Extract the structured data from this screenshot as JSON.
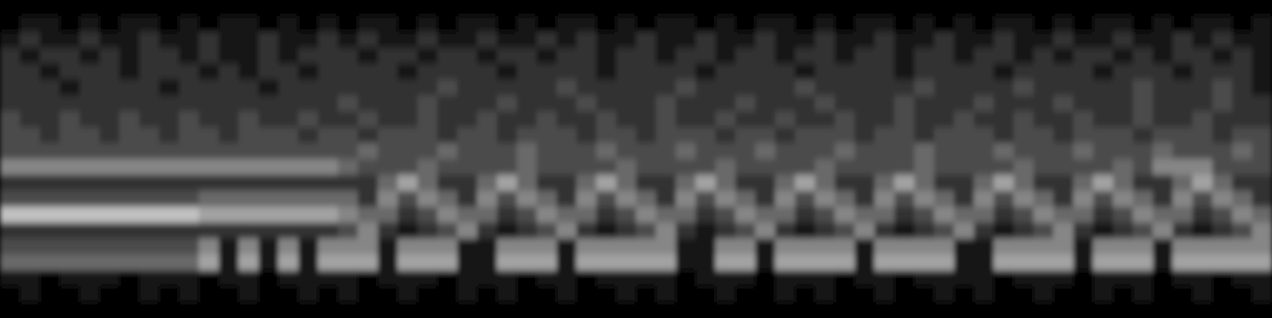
{
  "chart_data": {
    "type": "heatmap",
    "color_range": [
      0,
      9
    ],
    "cells": [
      [
        0,
        0,
        0,
        0,
        0,
        0,
        0,
        0,
        0,
        0,
        0,
        0,
        0,
        0,
        0,
        0,
        0,
        0,
        0,
        0,
        0,
        0,
        0,
        0,
        0,
        0,
        0,
        0,
        0,
        0,
        0,
        0,
        0,
        0,
        0,
        0,
        0,
        0,
        0,
        0,
        0,
        0,
        0,
        0,
        0,
        0,
        0,
        0,
        0,
        0,
        0,
        0,
        0,
        0,
        0,
        0,
        0,
        0,
        0,
        0,
        0,
        0,
        0,
        0
      ],
      [
        0,
        1,
        1,
        0,
        1,
        0,
        1,
        1,
        0,
        1,
        0,
        1,
        1,
        0,
        1,
        0,
        1,
        0,
        1,
        1,
        0,
        1,
        0,
        1,
        1,
        0,
        1,
        0,
        1,
        1,
        0,
        1,
        0,
        1,
        1,
        0,
        1,
        0,
        1,
        1,
        0,
        1,
        0,
        1,
        1,
        0,
        1,
        0,
        1,
        0,
        1,
        1,
        0,
        1,
        0,
        1,
        1,
        0,
        1,
        0,
        1,
        1,
        0,
        1
      ],
      [
        1,
        2,
        1,
        1,
        2,
        1,
        1,
        2,
        1,
        1,
        2,
        1,
        1,
        2,
        1,
        1,
        2,
        1,
        2,
        1,
        1,
        2,
        1,
        1,
        2,
        1,
        1,
        2,
        1,
        2,
        1,
        1,
        2,
        1,
        1,
        2,
        1,
        1,
        2,
        1,
        1,
        2,
        1,
        1,
        2,
        1,
        1,
        2,
        1,
        1,
        2,
        1,
        1,
        2,
        1,
        1,
        2,
        1,
        1,
        2,
        1,
        2,
        1,
        1
      ],
      [
        2,
        1,
        2,
        2,
        1,
        2,
        1,
        2,
        2,
        1,
        2,
        1,
        1,
        2,
        1,
        2,
        2,
        2,
        1,
        2,
        2,
        1,
        2,
        2,
        1,
        2,
        2,
        1,
        2,
        2,
        1,
        2,
        2,
        1,
        2,
        2,
        1,
        2,
        2,
        1,
        2,
        2,
        1,
        2,
        2,
        1,
        2,
        2,
        1,
        2,
        2,
        1,
        2,
        1,
        2,
        2,
        1,
        2,
        1,
        2,
        2,
        1,
        2,
        1
      ],
      [
        2,
        2,
        1,
        2,
        2,
        2,
        1,
        2,
        2,
        2,
        1,
        2,
        1,
        2,
        2,
        1,
        2,
        2,
        2,
        2,
        1,
        2,
        2,
        2,
        2,
        1,
        2,
        2,
        2,
        2,
        1,
        2,
        2,
        2,
        2,
        1,
        2,
        2,
        2,
        2,
        1,
        2,
        2,
        2,
        2,
        1,
        2,
        2,
        2,
        2,
        1,
        2,
        2,
        2,
        2,
        1,
        2,
        2,
        2,
        1,
        2,
        2,
        2,
        1
      ],
      [
        2,
        2,
        2,
        1,
        2,
        2,
        2,
        2,
        1,
        2,
        2,
        2,
        2,
        1,
        2,
        2,
        2,
        2,
        2,
        2,
        2,
        2,
        3,
        2,
        2,
        2,
        2,
        2,
        3,
        2,
        2,
        2,
        2,
        2,
        3,
        2,
        2,
        2,
        2,
        2,
        3,
        2,
        2,
        2,
        2,
        2,
        3,
        2,
        2,
        2,
        2,
        3,
        2,
        2,
        2,
        2,
        2,
        3,
        2,
        2,
        2,
        3,
        2,
        1
      ],
      [
        2,
        2,
        2,
        2,
        2,
        2,
        2,
        2,
        2,
        2,
        2,
        2,
        2,
        2,
        2,
        2,
        2,
        3,
        2,
        2,
        2,
        3,
        2,
        2,
        2,
        3,
        2,
        2,
        2,
        3,
        2,
        2,
        2,
        3,
        2,
        2,
        2,
        3,
        2,
        2,
        2,
        3,
        2,
        2,
        2,
        3,
        2,
        2,
        2,
        3,
        2,
        2,
        2,
        3,
        2,
        2,
        2,
        3,
        2,
        2,
        2,
        3,
        2,
        2
      ],
      [
        3,
        2,
        2,
        3,
        2,
        2,
        3,
        2,
        2,
        3,
        2,
        2,
        3,
        2,
        2,
        3,
        2,
        2,
        3,
        2,
        2,
        3,
        2,
        2,
        3,
        2,
        2,
        3,
        2,
        2,
        3,
        2,
        2,
        3,
        2,
        2,
        3,
        2,
        2,
        3,
        2,
        2,
        3,
        2,
        2,
        3,
        2,
        2,
        3,
        2,
        2,
        3,
        2,
        2,
        3,
        2,
        2,
        3,
        2,
        2,
        3,
        2,
        2,
        2
      ],
      [
        3,
        3,
        2,
        3,
        3,
        2,
        3,
        3,
        2,
        3,
        3,
        2,
        3,
        3,
        3,
        2,
        3,
        3,
        2,
        3,
        3,
        3,
        2,
        3,
        3,
        2,
        3,
        3,
        3,
        2,
        3,
        3,
        2,
        3,
        3,
        3,
        2,
        3,
        3,
        2,
        3,
        3,
        3,
        2,
        3,
        3,
        2,
        3,
        3,
        3,
        2,
        3,
        3,
        2,
        3,
        3,
        3,
        2,
        3,
        3,
        3,
        2,
        3,
        3
      ],
      [
        3,
        3,
        3,
        3,
        3,
        3,
        3,
        3,
        3,
        3,
        3,
        3,
        3,
        3,
        3,
        3,
        3,
        3,
        4,
        3,
        3,
        3,
        4,
        3,
        3,
        3,
        4,
        3,
        3,
        3,
        4,
        3,
        3,
        3,
        4,
        3,
        3,
        3,
        4,
        3,
        3,
        3,
        4,
        3,
        3,
        3,
        4,
        3,
        3,
        3,
        4,
        3,
        3,
        3,
        4,
        3,
        3,
        3,
        4,
        3,
        3,
        3,
        4,
        3
      ],
      [
        5,
        5,
        5,
        5,
        5,
        5,
        5,
        5,
        5,
        5,
        5,
        5,
        5,
        5,
        5,
        5,
        5,
        4,
        3,
        3,
        3,
        4,
        3,
        3,
        3,
        3,
        4,
        3,
        3,
        3,
        3,
        4,
        3,
        3,
        3,
        3,
        4,
        3,
        3,
        3,
        3,
        4,
        3,
        3,
        3,
        3,
        4,
        3,
        3,
        3,
        3,
        4,
        3,
        3,
        3,
        3,
        4,
        3,
        5,
        5,
        5,
        3,
        3,
        3
      ],
      [
        2,
        2,
        2,
        2,
        2,
        2,
        2,
        2,
        2,
        2,
        2,
        2,
        2,
        2,
        2,
        2,
        2,
        2,
        2,
        4,
        6,
        4,
        2,
        2,
        4,
        6,
        4,
        2,
        2,
        4,
        6,
        4,
        2,
        2,
        4,
        6,
        4,
        2,
        2,
        4,
        6,
        4,
        2,
        2,
        4,
        6,
        4,
        2,
        2,
        4,
        6,
        4,
        2,
        2,
        4,
        6,
        4,
        2,
        2,
        4,
        6,
        4,
        2,
        2
      ],
      [
        3,
        3,
        3,
        3,
        3,
        3,
        3,
        3,
        3,
        3,
        4,
        4,
        4,
        4,
        4,
        4,
        4,
        4,
        2,
        5,
        3,
        5,
        4,
        2,
        5,
        3,
        5,
        4,
        2,
        5,
        3,
        5,
        4,
        2,
        5,
        3,
        5,
        4,
        2,
        5,
        3,
        5,
        4,
        2,
        5,
        3,
        5,
        4,
        2,
        5,
        3,
        5,
        4,
        2,
        5,
        3,
        5,
        4,
        2,
        5,
        3,
        5,
        4,
        2
      ],
      [
        7,
        7,
        7,
        7,
        7,
        7,
        7,
        7,
        7,
        7,
        6,
        6,
        6,
        6,
        6,
        6,
        6,
        5,
        4,
        4,
        2,
        3,
        5,
        4,
        4,
        2,
        3,
        5,
        4,
        4,
        2,
        3,
        5,
        4,
        4,
        2,
        3,
        5,
        4,
        4,
        2,
        3,
        5,
        4,
        4,
        2,
        3,
        5,
        4,
        4,
        2,
        3,
        5,
        4,
        4,
        2,
        3,
        5,
        4,
        4,
        2,
        3,
        5,
        4
      ],
      [
        2,
        2,
        2,
        2,
        2,
        2,
        2,
        2,
        2,
        2,
        2,
        2,
        2,
        2,
        2,
        2,
        2,
        3,
        5,
        2,
        1,
        2,
        3,
        5,
        2,
        1,
        2,
        3,
        5,
        2,
        1,
        2,
        3,
        5,
        2,
        1,
        2,
        3,
        5,
        2,
        1,
        2,
        3,
        5,
        2,
        1,
        2,
        3,
        5,
        2,
        1,
        2,
        3,
        5,
        2,
        1,
        2,
        3,
        5,
        2,
        1,
        2,
        3,
        5
      ],
      [
        3,
        3,
        3,
        3,
        3,
        3,
        3,
        3,
        3,
        3,
        5,
        1,
        5,
        1,
        5,
        1,
        5,
        5,
        5,
        1,
        5,
        5,
        5,
        1,
        1,
        5,
        5,
        5,
        1,
        5,
        5,
        5,
        5,
        5,
        1,
        1,
        5,
        5,
        1,
        5,
        5,
        5,
        5,
        1,
        5,
        5,
        5,
        5,
        1,
        1,
        5,
        5,
        5,
        5,
        1,
        5,
        5,
        5,
        1,
        5,
        5,
        5,
        5,
        5
      ],
      [
        4,
        4,
        4,
        4,
        4,
        4,
        4,
        4,
        4,
        4,
        6,
        1,
        6,
        1,
        6,
        1,
        6,
        6,
        6,
        1,
        6,
        6,
        6,
        1,
        1,
        6,
        6,
        6,
        1,
        6,
        6,
        6,
        6,
        6,
        1,
        1,
        6,
        6,
        1,
        6,
        6,
        6,
        6,
        1,
        6,
        6,
        6,
        6,
        1,
        1,
        6,
        6,
        6,
        6,
        1,
        6,
        6,
        6,
        1,
        6,
        6,
        6,
        6,
        6
      ],
      [
        1,
        1,
        0,
        1,
        1,
        1,
        0,
        1,
        1,
        1,
        0,
        1,
        1,
        0,
        1,
        1,
        1,
        1,
        0,
        1,
        1,
        1,
        0,
        1,
        1,
        1,
        0,
        1,
        1,
        0,
        1,
        1,
        1,
        1,
        0,
        1,
        1,
        1,
        0,
        1,
        1,
        1,
        0,
        1,
        1,
        0,
        1,
        1,
        1,
        1,
        0,
        1,
        1,
        1,
        0,
        1,
        1,
        1,
        0,
        1,
        1,
        0,
        1,
        1
      ],
      [
        0,
        1,
        0,
        0,
        1,
        0,
        0,
        1,
        0,
        1,
        0,
        0,
        1,
        0,
        0,
        1,
        0,
        1,
        0,
        0,
        1,
        0,
        0,
        1,
        0,
        1,
        0,
        0,
        1,
        0,
        0,
        1,
        0,
        1,
        0,
        0,
        1,
        0,
        0,
        1,
        0,
        1,
        0,
        0,
        1,
        0,
        0,
        1,
        0,
        1,
        0,
        0,
        1,
        0,
        0,
        1,
        0,
        1,
        0,
        0,
        1,
        0,
        0,
        1
      ],
      [
        0,
        0,
        0,
        0,
        0,
        0,
        0,
        0,
        0,
        0,
        0,
        0,
        0,
        0,
        0,
        0,
        0,
        0,
        0,
        0,
        0,
        0,
        0,
        0,
        0,
        0,
        0,
        0,
        0,
        0,
        0,
        0,
        0,
        0,
        0,
        0,
        0,
        0,
        0,
        0,
        0,
        0,
        0,
        0,
        0,
        0,
        0,
        0,
        0,
        0,
        0,
        0,
        0,
        0,
        0,
        0,
        0,
        0,
        0,
        0,
        0,
        0,
        0,
        0
      ]
    ]
  }
}
